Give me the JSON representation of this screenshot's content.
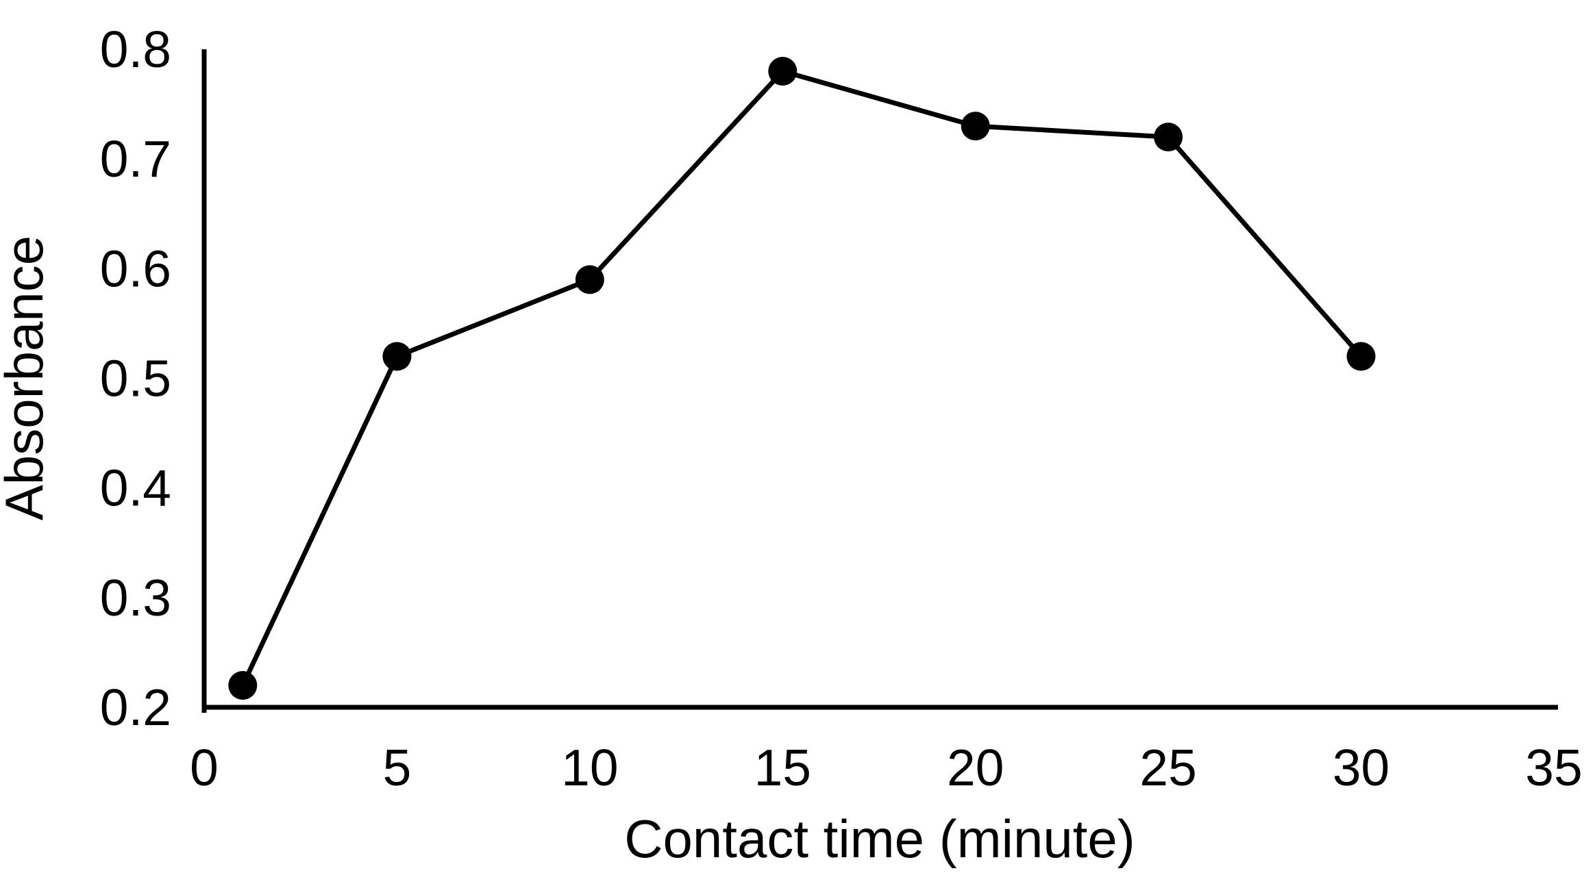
{
  "figure": {
    "background_color": "#ffffff",
    "foreground_color": "#000000"
  },
  "chart_data": {
    "type": "line",
    "title": "",
    "xlabel": "Contact time (minute)",
    "ylabel": "Absorbance",
    "x": [
      1,
      5,
      10,
      15,
      20,
      25,
      30
    ],
    "series": [
      {
        "name": "Absorbance",
        "values": [
          0.22,
          0.52,
          0.59,
          0.78,
          0.73,
          0.72,
          0.52
        ]
      }
    ],
    "xlim": [
      0,
      35
    ],
    "ylim": [
      0.2,
      0.8
    ],
    "xticks": [
      0,
      5,
      10,
      15,
      20,
      25,
      30,
      35
    ],
    "xtick_labels": [
      "0",
      "5",
      "10",
      "15",
      "20",
      "25",
      "30",
      "35"
    ],
    "yticks": [
      0.2,
      0.3,
      0.4,
      0.5,
      0.6,
      0.7,
      0.8
    ],
    "ytick_labels": [
      "0.2",
      "0.3",
      "0.4",
      "0.5",
      "0.6",
      "0.7",
      "0.8"
    ],
    "grid": false,
    "legend_position": "none",
    "line_color": "#000000",
    "marker": "circle",
    "marker_color": "#000000"
  }
}
